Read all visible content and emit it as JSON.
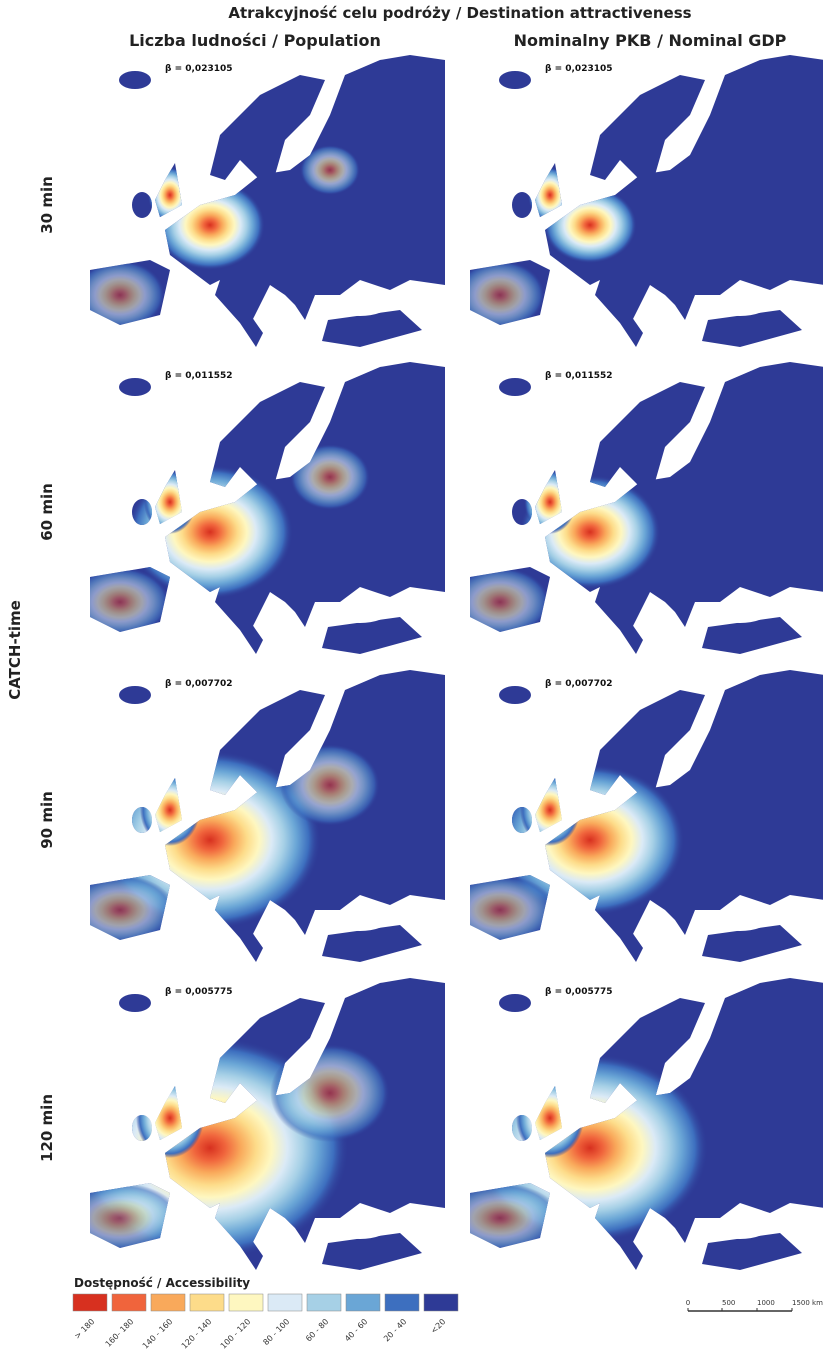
{
  "title": "Atrakcyjność celu podróży / Destination attractiveness",
  "columns": [
    "Liczba ludności / Population",
    "Nominalny PKB / Nominal GDP"
  ],
  "row_axis_label": "CATCH-time",
  "rows": [
    {
      "label": "30 min",
      "beta": "β = 0,023105"
    },
    {
      "label": "60 min",
      "beta": "β = 0,011552"
    },
    {
      "label": "90 min",
      "beta": "β = 0,007702"
    },
    {
      "label": "120 min",
      "beta": "β = 0,005775"
    }
  ],
  "legend": {
    "title": "Dostępność / Accessibility",
    "classes": [
      {
        "label": "> 180",
        "color": "#d7301f"
      },
      {
        "label": "160- 180",
        "color": "#f0643c"
      },
      {
        "label": "140 - 160",
        "color": "#f9a95b"
      },
      {
        "label": "120 - 140",
        "color": "#fddc8a"
      },
      {
        "label": "100 - 120",
        "color": "#fef7c0"
      },
      {
        "label": "80 - 100",
        "color": "#dbeaf6"
      },
      {
        "label": "60 - 80",
        "color": "#a6d0e6"
      },
      {
        "label": "40 - 60",
        "color": "#6aa6d6"
      },
      {
        "label": "20 - 40",
        "color": "#3d6fbf"
      },
      {
        "label": "<20",
        "color": "#2e3a96"
      }
    ]
  },
  "scale_bar": {
    "labels": [
      "0",
      "500",
      "1000",
      "1500 km"
    ]
  }
}
